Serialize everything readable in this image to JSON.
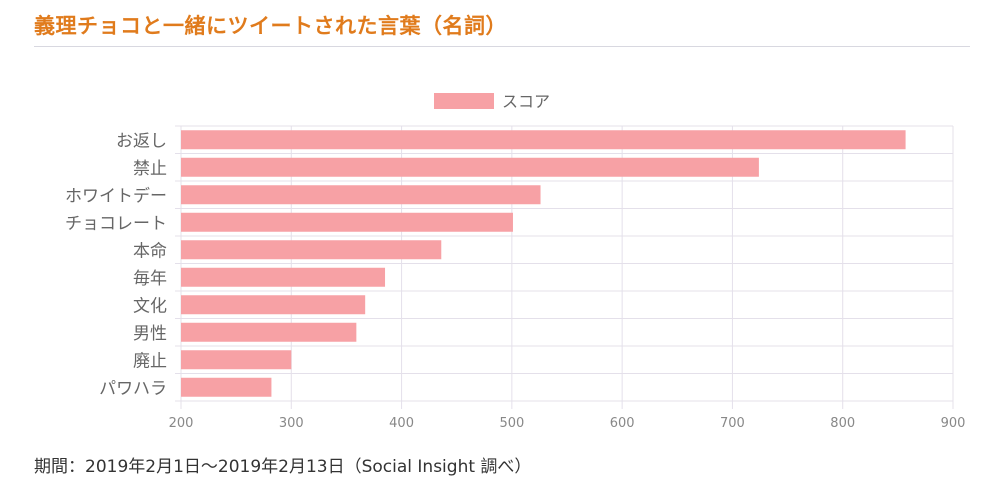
{
  "title": "義理チョコと一緒にツイートされた言葉（名詞）",
  "footer": "期間：2019年2月1日～2019年2月13日（Social Insight 調べ）",
  "colors": {
    "title": "#e07b1c",
    "bar": "#f7a1a5",
    "grid": "#e4e0ea",
    "label": "#666666",
    "tick": "#888888"
  },
  "chart_data": {
    "type": "bar",
    "orientation": "horizontal",
    "categories": [
      "お返し",
      "禁止",
      "ホワイトデー",
      "チョコレート",
      "本命",
      "毎年",
      "文化",
      "男性",
      "廃止",
      "パワハラ"
    ],
    "series": [
      {
        "name": "スコア",
        "values": [
          857,
          724,
          526,
          501,
          436,
          385,
          367,
          359,
          300,
          282
        ]
      }
    ],
    "xlim": [
      200,
      900
    ],
    "xticks": [
      200,
      300,
      400,
      500,
      600,
      700,
      800,
      900
    ],
    "grid": true,
    "legend_position": "top-center"
  }
}
